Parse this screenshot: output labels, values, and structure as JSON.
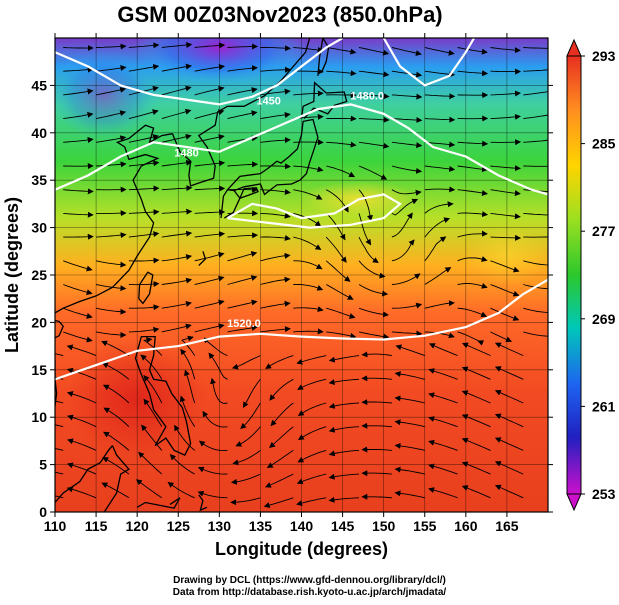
{
  "title": "GSM 00Z03Nov2023 (850.0hPa)",
  "x_axis": {
    "label": "Longitude (degrees)",
    "ticks": [
      110,
      115,
      120,
      125,
      130,
      135,
      140,
      145,
      150,
      155,
      160,
      165
    ],
    "range": [
      110,
      170
    ]
  },
  "y_axis": {
    "label": "Latitude  (degrees)",
    "ticks": [
      0,
      5,
      10,
      15,
      20,
      25,
      30,
      35,
      40,
      45
    ],
    "range": [
      0,
      50
    ]
  },
  "colorbar": {
    "labels": [
      293,
      285,
      277,
      269,
      261,
      253
    ],
    "range": [
      253,
      293
    ]
  },
  "contours": [
    {
      "label": "1480.0",
      "lon": 148,
      "lat": 43.5
    },
    {
      "label": "1520.0",
      "lon": 133,
      "lat": 19.5
    },
    {
      "label": "1480",
      "lon": 126,
      "lat": 37.5
    },
    {
      "label": "1450",
      "lon": 136,
      "lat": 43
    }
  ],
  "credits": {
    "line1": "Drawing by DCL (https://www.gfd-dennou.org/library/dcl/)",
    "line2": "Data from http://database.rish.kyoto-u.ac.jp/arch/jmadata/"
  },
  "colors": {
    "cold": "#cc00cc",
    "cool": "#1a2cd9",
    "mid_cold": "#00c8e6",
    "mid": "#2ecc2e",
    "warm": "#ffd200",
    "hot": "#e6321e",
    "streamline": "#000000",
    "contour": "#ffffff"
  }
}
